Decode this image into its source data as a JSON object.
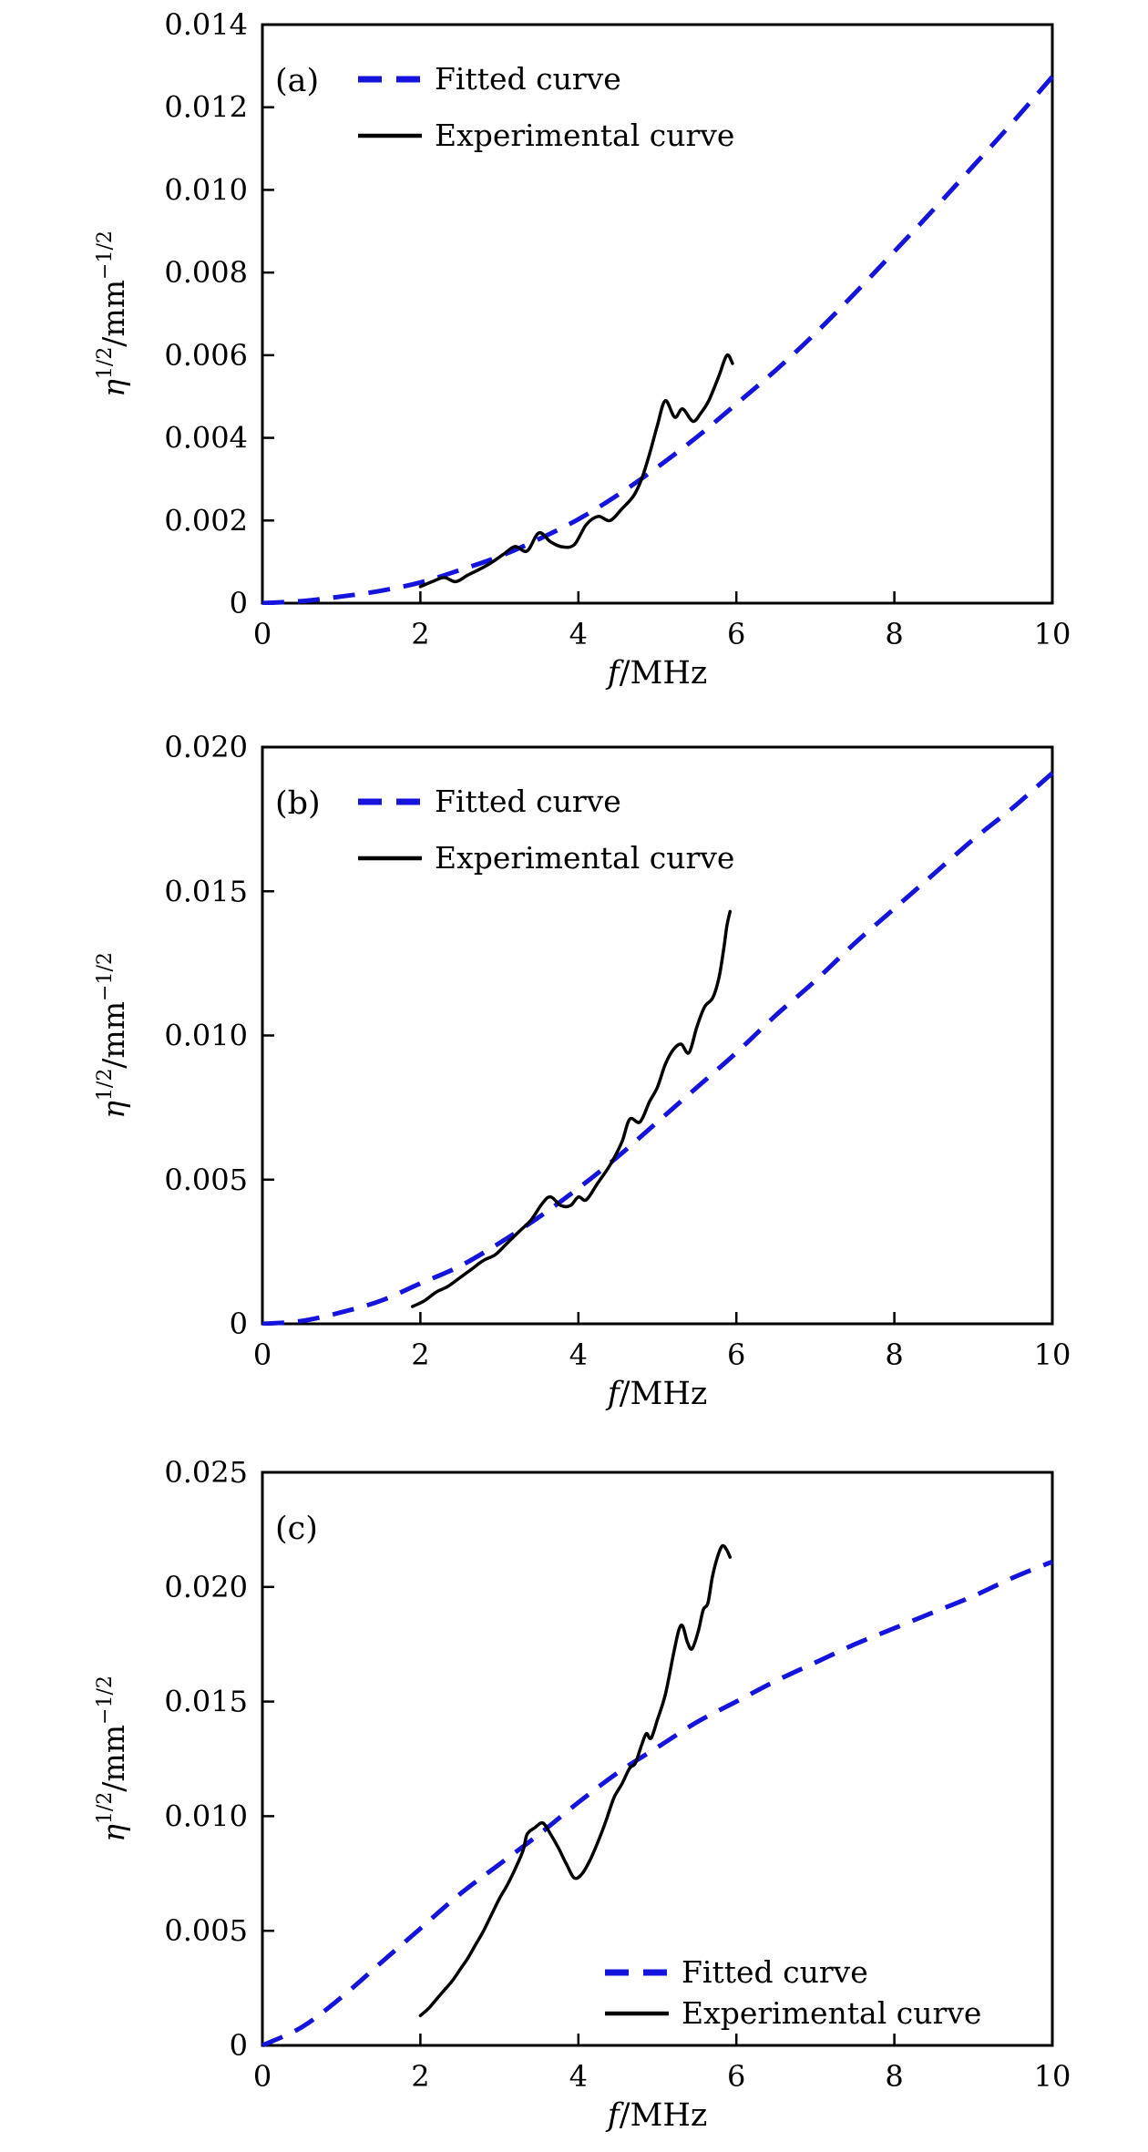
{
  "figure_background": "#ffffff",
  "axis_color": "#000000",
  "chart_data": [
    {
      "id": "a",
      "type": "line",
      "panel_label": "(a)",
      "title": "",
      "xlabel": "f/MHz",
      "xlabel_parts": {
        "var": "f",
        "rest": "/MHz"
      },
      "ylabel": "η^(1/2)/mm^(−1/2)",
      "ylabel_parts": {
        "var": "η",
        "sup1": "1/2",
        "rest": "/mm",
        "sup2": "−1/2"
      },
      "xlim": [
        0,
        10
      ],
      "ylim": [
        0,
        0.014
      ],
      "grid": false,
      "xticks": [
        {
          "v": 0,
          "label": "0"
        },
        {
          "v": 2,
          "label": "2"
        },
        {
          "v": 4,
          "label": "4"
        },
        {
          "v": 6,
          "label": "6"
        },
        {
          "v": 8,
          "label": "8"
        },
        {
          "v": 10,
          "label": "10"
        }
      ],
      "yticks": [
        {
          "v": 0,
          "label": "0"
        },
        {
          "v": 0.002,
          "label": "0.002"
        },
        {
          "v": 0.004,
          "label": "0.004"
        },
        {
          "v": 0.006,
          "label": "0.006"
        },
        {
          "v": 0.008,
          "label": "0.008"
        },
        {
          "v": 0.01,
          "label": "0.010"
        },
        {
          "v": 0.012,
          "label": "0.012"
        },
        {
          "v": 0.014,
          "label": "0.014"
        }
      ],
      "legend": {
        "position": "top-left",
        "entries": [
          {
            "series": "fitted",
            "label": "Fitted curve"
          },
          {
            "series": "experimental",
            "label": "Experimental curve"
          }
        ]
      },
      "series": [
        {
          "key": "fitted",
          "name": "Fitted curve",
          "style": "dashed",
          "color": "#1414dd",
          "points": [
            [
              0,
              0
            ],
            [
              0.5,
              5e-05
            ],
            [
              1,
              0.00016
            ],
            [
              1.5,
              0.0003
            ],
            [
              2,
              0.0005
            ],
            [
              2.5,
              0.0008
            ],
            [
              3,
              0.00113
            ],
            [
              3.5,
              0.00155
            ],
            [
              4,
              0.00203
            ],
            [
              4.5,
              0.00262
            ],
            [
              5,
              0.00329
            ],
            [
              5.5,
              0.00402
            ],
            [
              6,
              0.00482
            ],
            [
              6.5,
              0.00564
            ],
            [
              7,
              0.00653
            ],
            [
              7.5,
              0.0075
            ],
            [
              8,
              0.00851
            ],
            [
              8.5,
              0.00953
            ],
            [
              9,
              0.01058
            ],
            [
              9.5,
              0.01164
            ],
            [
              10,
              0.01274
            ]
          ]
        },
        {
          "key": "experimental",
          "name": "Experimental curve",
          "style": "solid",
          "color": "#000000",
          "points": [
            [
              2,
              0.0004
            ],
            [
              2.15,
              0.00052
            ],
            [
              2.3,
              0.00062
            ],
            [
              2.45,
              0.00052
            ],
            [
              2.6,
              0.00068
            ],
            [
              2.75,
              0.00082
            ],
            [
              2.9,
              0.00098
            ],
            [
              3.05,
              0.00118
            ],
            [
              3.2,
              0.00137
            ],
            [
              3.35,
              0.00126
            ],
            [
              3.5,
              0.0017
            ],
            [
              3.65,
              0.00148
            ],
            [
              3.8,
              0.00136
            ],
            [
              3.95,
              0.00142
            ],
            [
              4.1,
              0.0019
            ],
            [
              4.25,
              0.0021
            ],
            [
              4.4,
              0.002
            ],
            [
              4.55,
              0.00228
            ],
            [
              4.7,
              0.0026
            ],
            [
              4.8,
              0.003
            ],
            [
              4.9,
              0.0036
            ],
            [
              5,
              0.0043
            ],
            [
              5.1,
              0.0049
            ],
            [
              5.22,
              0.0045
            ],
            [
              5.32,
              0.0047
            ],
            [
              5.45,
              0.0044
            ],
            [
              5.55,
              0.0046
            ],
            [
              5.65,
              0.0049
            ],
            [
              5.78,
              0.0055
            ],
            [
              5.88,
              0.006
            ],
            [
              5.95,
              0.0058
            ]
          ]
        }
      ]
    },
    {
      "id": "b",
      "type": "line",
      "panel_label": "(b)",
      "title": "",
      "xlabel": "f/MHz",
      "xlabel_parts": {
        "var": "f",
        "rest": "/MHz"
      },
      "ylabel": "η^(1/2)/mm^(−1/2)",
      "ylabel_parts": {
        "var": "η",
        "sup1": "1/2",
        "rest": "/mm",
        "sup2": "−1/2"
      },
      "xlim": [
        0,
        10
      ],
      "ylim": [
        0,
        0.02
      ],
      "grid": false,
      "xticks": [
        {
          "v": 0,
          "label": "0"
        },
        {
          "v": 2,
          "label": "2"
        },
        {
          "v": 4,
          "label": "4"
        },
        {
          "v": 6,
          "label": "6"
        },
        {
          "v": 8,
          "label": "8"
        },
        {
          "v": 10,
          "label": "10"
        }
      ],
      "yticks": [
        {
          "v": 0,
          "label": "0"
        },
        {
          "v": 0.005,
          "label": "0.005"
        },
        {
          "v": 0.01,
          "label": "0.010"
        },
        {
          "v": 0.015,
          "label": "0.015"
        },
        {
          "v": 0.02,
          "label": "0.020"
        }
      ],
      "legend": {
        "position": "top-left",
        "entries": [
          {
            "series": "fitted",
            "label": "Fitted curve"
          },
          {
            "series": "experimental",
            "label": "Experimental curve"
          }
        ]
      },
      "series": [
        {
          "key": "fitted",
          "name": "Fitted curve",
          "style": "dashed",
          "color": "#1414dd",
          "points": [
            [
              0,
              0
            ],
            [
              0.5,
              0.0001
            ],
            [
              1,
              0.0004
            ],
            [
              1.5,
              0.0008
            ],
            [
              2,
              0.0014
            ],
            [
              2.5,
              0.002
            ],
            [
              3,
              0.0028
            ],
            [
              3.5,
              0.0037
            ],
            [
              4,
              0.0047
            ],
            [
              4.5,
              0.0058
            ],
            [
              5,
              0.007
            ],
            [
              5.5,
              0.0082
            ],
            [
              6,
              0.0094
            ],
            [
              6.5,
              0.0107
            ],
            [
              7,
              0.0119
            ],
            [
              7.5,
              0.0132
            ],
            [
              8,
              0.0144
            ],
            [
              8.5,
              0.0156
            ],
            [
              9,
              0.0168
            ],
            [
              9.5,
              0.0179
            ],
            [
              10,
              0.0191
            ]
          ]
        },
        {
          "key": "experimental",
          "name": "Experimental curve",
          "style": "solid",
          "color": "#000000",
          "points": [
            [
              1.9,
              0.0006
            ],
            [
              2.05,
              0.0008
            ],
            [
              2.2,
              0.0011
            ],
            [
              2.35,
              0.0013
            ],
            [
              2.5,
              0.0016
            ],
            [
              2.65,
              0.0019
            ],
            [
              2.8,
              0.0022
            ],
            [
              2.95,
              0.0024
            ],
            [
              3.1,
              0.0028
            ],
            [
              3.25,
              0.0032
            ],
            [
              3.4,
              0.0036
            ],
            [
              3.55,
              0.0042
            ],
            [
              3.65,
              0.0044
            ],
            [
              3.78,
              0.0041
            ],
            [
              3.9,
              0.0041
            ],
            [
              4,
              0.0044
            ],
            [
              4.1,
              0.0043
            ],
            [
              4.25,
              0.0049
            ],
            [
              4.4,
              0.0055
            ],
            [
              4.55,
              0.0063
            ],
            [
              4.65,
              0.0071
            ],
            [
              4.78,
              0.007
            ],
            [
              4.9,
              0.0077
            ],
            [
              5,
              0.0082
            ],
            [
              5.1,
              0.009
            ],
            [
              5.2,
              0.0095
            ],
            [
              5.3,
              0.0097
            ],
            [
              5.4,
              0.0094
            ],
            [
              5.5,
              0.0103
            ],
            [
              5.6,
              0.011
            ],
            [
              5.7,
              0.0113
            ],
            [
              5.78,
              0.012
            ],
            [
              5.84,
              0.013
            ],
            [
              5.88,
              0.0138
            ],
            [
              5.92,
              0.0143
            ]
          ]
        }
      ]
    },
    {
      "id": "c",
      "type": "line",
      "panel_label": "(c)",
      "title": "",
      "xlabel": "f/MHz",
      "xlabel_parts": {
        "var": "f",
        "rest": "/MHz"
      },
      "ylabel": "η^(1/2)/mm^(−1/2)",
      "ylabel_parts": {
        "var": "η",
        "sup1": "1/2",
        "rest": "/mm",
        "sup2": "−1/2"
      },
      "xlim": [
        0,
        10
      ],
      "ylim": [
        0,
        0.025
      ],
      "grid": false,
      "xticks": [
        {
          "v": 0,
          "label": "0"
        },
        {
          "v": 2,
          "label": "2"
        },
        {
          "v": 4,
          "label": "4"
        },
        {
          "v": 6,
          "label": "6"
        },
        {
          "v": 8,
          "label": "8"
        },
        {
          "v": 10,
          "label": "10"
        }
      ],
      "yticks": [
        {
          "v": 0,
          "label": "0"
        },
        {
          "v": 0.005,
          "label": "0.005"
        },
        {
          "v": 0.01,
          "label": "0.010"
        },
        {
          "v": 0.015,
          "label": "0.015"
        },
        {
          "v": 0.02,
          "label": "0.020"
        },
        {
          "v": 0.025,
          "label": "0.025"
        }
      ],
      "legend": {
        "position": "bottom-right",
        "entries": [
          {
            "series": "fitted",
            "label": "Fitted curve"
          },
          {
            "series": "experimental",
            "label": "Experimental curve"
          }
        ]
      },
      "series": [
        {
          "key": "fitted",
          "name": "Fitted curve",
          "style": "dashed",
          "color": "#1414dd",
          "points": [
            [
              0,
              0
            ],
            [
              0.5,
              0.0008
            ],
            [
              1,
              0.0021
            ],
            [
              1.5,
              0.0036
            ],
            [
              2,
              0.0051
            ],
            [
              2.5,
              0.0066
            ],
            [
              3,
              0.0079
            ],
            [
              3.5,
              0.0092
            ],
            [
              4,
              0.0106
            ],
            [
              4.5,
              0.0119
            ],
            [
              5,
              0.013
            ],
            [
              5.5,
              0.0141
            ],
            [
              6,
              0.015
            ],
            [
              6.5,
              0.0159
            ],
            [
              7,
              0.0167
            ],
            [
              7.5,
              0.0175
            ],
            [
              8,
              0.0182
            ],
            [
              8.5,
              0.0189
            ],
            [
              9,
              0.0196
            ],
            [
              9.5,
              0.0204
            ],
            [
              10,
              0.0211
            ]
          ]
        },
        {
          "key": "experimental",
          "name": "Experimental curve",
          "style": "solid",
          "color": "#000000",
          "points": [
            [
              2,
              0.0013
            ],
            [
              2.1,
              0.0016
            ],
            [
              2.2,
              0.002
            ],
            [
              2.3,
              0.0024
            ],
            [
              2.4,
              0.0028
            ],
            [
              2.5,
              0.0033
            ],
            [
              2.6,
              0.0038
            ],
            [
              2.7,
              0.0044
            ],
            [
              2.8,
              0.005
            ],
            [
              2.9,
              0.0057
            ],
            [
              3,
              0.0064
            ],
            [
              3.1,
              0.007
            ],
            [
              3.2,
              0.0077
            ],
            [
              3.3,
              0.0085
            ],
            [
              3.35,
              0.0092
            ],
            [
              3.45,
              0.0095
            ],
            [
              3.55,
              0.0097
            ],
            [
              3.65,
              0.0092
            ],
            [
              3.75,
              0.0086
            ],
            [
              3.85,
              0.0079
            ],
            [
              3.95,
              0.0073
            ],
            [
              4.05,
              0.0075
            ],
            [
              4.15,
              0.0081
            ],
            [
              4.25,
              0.0089
            ],
            [
              4.35,
              0.0098
            ],
            [
              4.45,
              0.0108
            ],
            [
              4.55,
              0.0114
            ],
            [
              4.65,
              0.0121
            ],
            [
              4.72,
              0.0123
            ],
            [
              4.8,
              0.0131
            ],
            [
              4.86,
              0.0136
            ],
            [
              4.92,
              0.0134
            ],
            [
              5,
              0.0142
            ],
            [
              5.1,
              0.0153
            ],
            [
              5.2,
              0.017
            ],
            [
              5.27,
              0.0181
            ],
            [
              5.32,
              0.0183
            ],
            [
              5.38,
              0.0176
            ],
            [
              5.44,
              0.0173
            ],
            [
              5.52,
              0.0181
            ],
            [
              5.58,
              0.019
            ],
            [
              5.64,
              0.0193
            ],
            [
              5.7,
              0.0205
            ],
            [
              5.78,
              0.0215
            ],
            [
              5.83,
              0.0218
            ],
            [
              5.88,
              0.0216
            ],
            [
              5.92,
              0.0213
            ]
          ]
        }
      ]
    }
  ]
}
